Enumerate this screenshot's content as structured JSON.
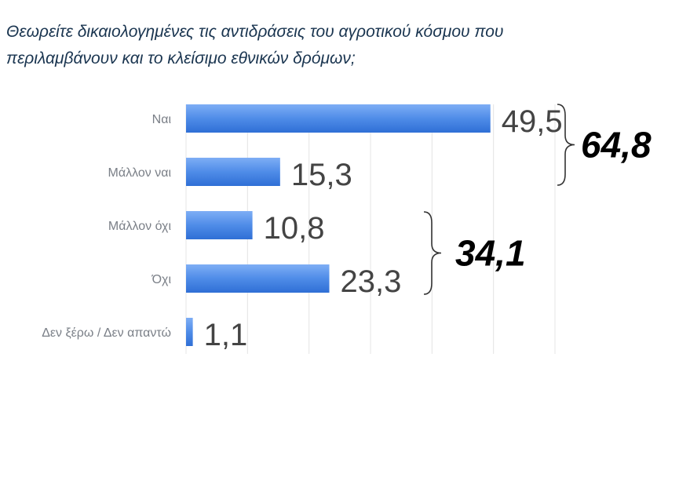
{
  "chart_data": {
    "type": "bar",
    "orientation": "horizontal",
    "title_lines": [
      "Θεωρείτε δικαιολογημένες τις αντιδράσεις του αγροτικού κόσμου που",
      "περιλαμβάνουν και το κλείσιμο εθνικών δρόμων;"
    ],
    "categories": [
      "Ναι",
      "Μάλλον ναι",
      "Μάλλον όχι",
      "Όχι",
      "Δεν ξέρω / Δεν απαντώ"
    ],
    "values": [
      49.5,
      15.3,
      10.8,
      23.3,
      1.1
    ],
    "value_labels": [
      "49,5",
      "15,3",
      "10,8",
      "23,3",
      "1,1"
    ],
    "xlim": [
      0,
      60
    ],
    "grid": true,
    "bar_color": "#4a86e8",
    "groups": [
      {
        "label": "64,8",
        "from_index": 0,
        "to_index": 1
      },
      {
        "label": "34,1",
        "from_index": 2,
        "to_index": 3
      }
    ]
  }
}
